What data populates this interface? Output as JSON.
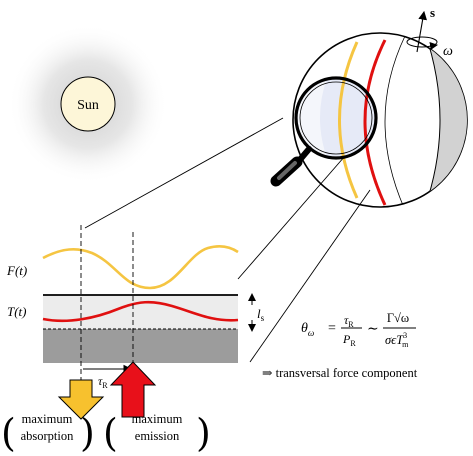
{
  "labels": {
    "sun": "Sun",
    "spin_axis": "s",
    "omega": "ω",
    "flux": "F(t)",
    "temperature": "T(t)",
    "skin_depth": "l",
    "skin_depth_sub": "s",
    "lag": "τ",
    "lag_sub": "R",
    "formula_lhs": "θ",
    "formula_lhs_sub": "ω",
    "formula_frac1_num": "τ",
    "formula_frac1_num_sub": "R",
    "formula_frac1_den": "P",
    "formula_frac1_den_sub": "R",
    "formula_sim": "∼",
    "formula_frac2_num": "Γ√ω",
    "formula_frac2_den": "σϵT",
    "formula_frac2_den_sub": "m",
    "formula_frac2_den_sup": "3",
    "consequence": "⇒ transversal force component",
    "absorption_line1": "maximum",
    "absorption_line2": "absorption",
    "emission_line1": "maximum",
    "emission_line2": "emission"
  },
  "colors": {
    "flux_curve": "#f5c542",
    "temp_curve": "#e01010",
    "surface_layer": "#ececec",
    "subsurface": "#9c9c9c",
    "absorption_arrow": "#f7c12e",
    "emission_arrow": "#e8101a",
    "sun_fill": "#fdf6d8"
  }
}
